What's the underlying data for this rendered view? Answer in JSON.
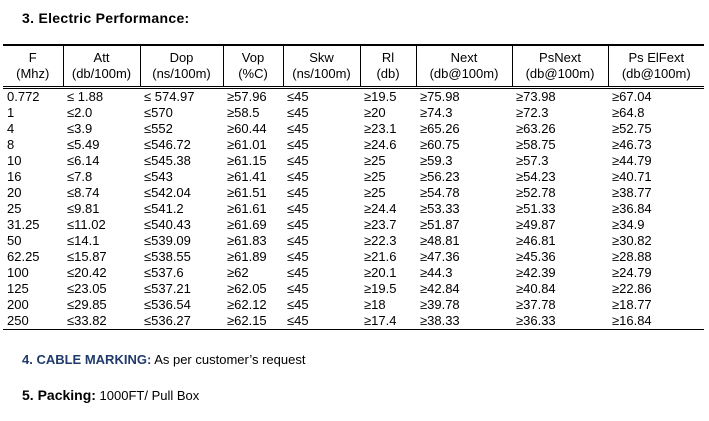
{
  "section3": {
    "title": "3. Electric Performance:"
  },
  "table": {
    "header": [
      [
        "F",
        "(Mhz)"
      ],
      [
        "Att",
        "(db/100m)"
      ],
      [
        "Dop",
        "(ns/100m)"
      ],
      [
        "Vop",
        "(%C)"
      ],
      [
        "Skw",
        "(ns/100m)"
      ],
      [
        "Rl",
        "(db)"
      ],
      [
        "Next",
        "(db@100m)"
      ],
      [
        "PsNext",
        "(db@100m)"
      ],
      [
        "Ps ElFext",
        "(db@100m)"
      ]
    ],
    "rows": [
      [
        "0.772",
        "≤ 1.88",
        "≤ 574.97",
        "≥57.96",
        "≤45",
        "≥19.5",
        "≥75.98",
        "≥73.98",
        "≥67.04"
      ],
      [
        "1",
        "≤2.0",
        "≤570",
        "≥58.5",
        "≤45",
        "≥20",
        "≥74.3",
        "≥72.3",
        "≥64.8"
      ],
      [
        "4",
        "≤3.9",
        "≤552",
        "≥60.44",
        "≤45",
        "≥23.1",
        "≥65.26",
        "≥63.26",
        "≥52.75"
      ],
      [
        "8",
        "≤5.49",
        "≤546.72",
        "≥61.01",
        "≤45",
        "≥24.6",
        "≥60.75",
        "≥58.75",
        "≥46.73"
      ],
      [
        "10",
        "≤6.14",
        "≤545.38",
        "≥61.15",
        "≤45",
        "≥25",
        "≥59.3",
        "≥57.3",
        "≥44.79"
      ],
      [
        "16",
        "≤7.8",
        "≤543",
        "≥61.41",
        "≤45",
        "≥25",
        "≥56.23",
        "≥54.23",
        "≥40.71"
      ],
      [
        "20",
        "≤8.74",
        "≤542.04",
        "≥61.51",
        "≤45",
        "≥25",
        "≥54.78",
        "≥52.78",
        "≥38.77"
      ],
      [
        "25",
        "≤9.81",
        "≤541.2",
        "≥61.61",
        "≤45",
        "≥24.4",
        "≥53.33",
        "≥51.33",
        "≥36.84"
      ],
      [
        "31.25",
        "≤11.02",
        "≤540.43",
        "≥61.69",
        "≤45",
        "≥23.7",
        "≥51.87",
        "≥49.87",
        "≥34.9"
      ],
      [
        "50",
        "≤14.1",
        "≤539.09",
        "≥61.83",
        "≤45",
        "≥22.3",
        "≥48.81",
        "≥46.81",
        "≥30.82"
      ],
      [
        "62.25",
        "≤15.87",
        "≤538.55",
        "≥61.89",
        "≤45",
        "≥21.6",
        "≥47.36",
        "≥45.36",
        "≥28.88"
      ],
      [
        "100",
        "≤20.42",
        "≤537.6",
        "≥62",
        "≤45",
        "≥20.1",
        "≥44.3",
        "≥42.39",
        "≥24.79"
      ],
      [
        "125",
        "≤23.05",
        "≤537.21",
        "≥62.05",
        "≤45",
        "≥19.5",
        "≥42.84",
        "≥40.84",
        "≥22.86"
      ],
      [
        "200",
        "≤29.85",
        "≤536.54",
        "≥62.12",
        "≤45",
        "≥18",
        "≥39.78",
        "≥37.78",
        "≥18.77"
      ],
      [
        "250",
        "≤33.82",
        "≤536.27",
        "≥62.15",
        "≤45",
        "≥17.4",
        "≥38.33",
        "≥36.33",
        "≥16.84"
      ]
    ]
  },
  "section4": {
    "label": "4. CABLE MARKING:",
    "text": "As per customer’s request"
  },
  "section5": {
    "label": "5. Packing:",
    "text": "1000FT/ Pull Box"
  }
}
